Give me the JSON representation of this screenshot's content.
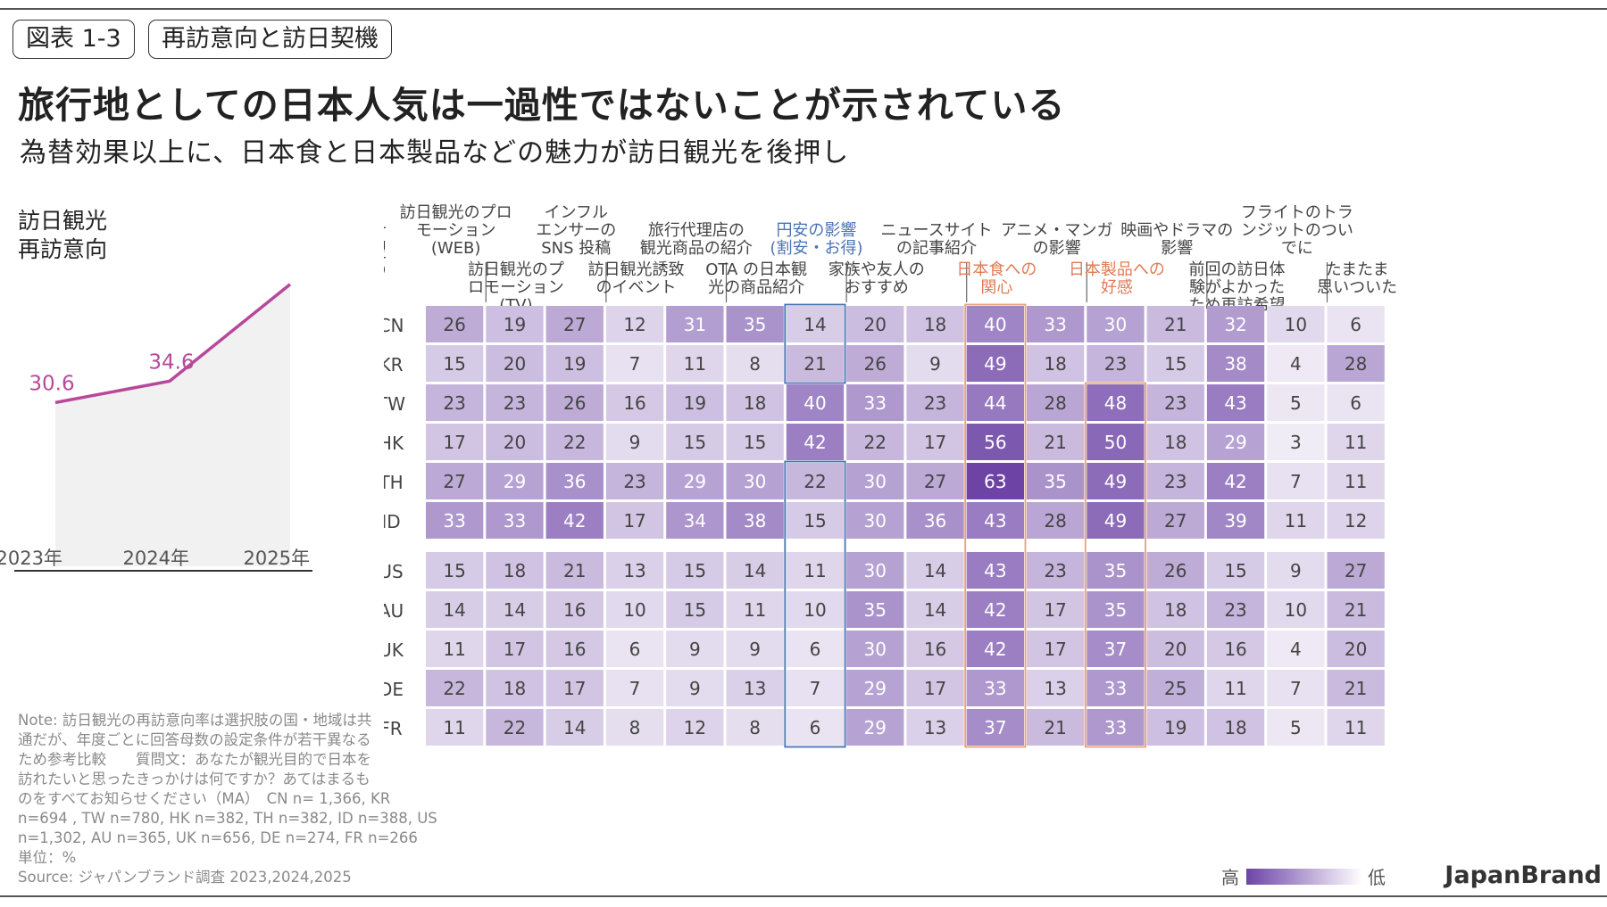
{
  "header": {
    "figure_tag": "図表 1-3",
    "section_tag": "再訪意向と訪日契機",
    "title": "旅行地としての日本人気は一過性ではないことが示されている",
    "subtitle": "為替効果以上に、日本食と日本製品などの魅力が訪日観光を後押し"
  },
  "left_panel": {
    "title_line1": "訪日観光",
    "title_line2": "再訪意向"
  },
  "heatmap_label": [
    "訪日希望の",
    "きっかけ"
  ],
  "note": {
    "lines": [
      "Note: 訪日観光の再訪意向率は選択肢の国・地域は共",
      "通だが、年度ごとに回答母数の設定条件が若干異なる",
      "ため参考比較　　質問文：あなたが観光目的で日本を",
      "訪れたいと思ったきっかけは何ですか？あてはまるも",
      "のをすべてお知らせください（MA）　CN n= 1,366, KR",
      "n=694 , TW n=780, HK n=382, TH n=382, ID n=388,  US",
      "n=1,302, AU n=365, UK n=656, DE n=274, FR n=266",
      "単位：%",
      "Source: ジャパンブランド調査 2023,2024,2025"
    ]
  },
  "brand": "JapanBrand",
  "legend": {
    "high": "高",
    "low": "低",
    "color_high": "#6d44a6",
    "color_low": "#ffffff"
  },
  "chart_data": [
    {
      "type": "line",
      "title": "訪日観光 再訪意向",
      "x": [
        "2023年",
        "2024年",
        "2025年"
      ],
      "values": [
        30.6,
        34.6,
        52.7
      ],
      "ylim": [
        0,
        62
      ],
      "line_color": "#b8499a",
      "area_color": "#f1f1f1"
    },
    {
      "type": "heatmap",
      "title": "訪日希望のきっかけ",
      "columns": [
        "訪日観光のプロモーション(WEB)",
        "訪日観光のプロモーション(TV)",
        "インフルエンサーのSNS投稿",
        "訪日観光誘致のイベント",
        "旅行代理店の観光商品の紹介",
        "OTAの日本観光の商品紹介",
        "円安の影響(割安・お得)",
        "家族や友人のおすすめ",
        "ニュースサイトの記事紹介",
        "日本食への関心",
        "アニメ・マンガの影響",
        "日本製品への好感",
        "映画やドラマの影響",
        "前回の訪日体験がよかったため再訪希望",
        "フライトのトランジットのついでに",
        "たまたま思いついた"
      ],
      "column_headers": [
        {
          "lines": [
            "訪日観光のプロ",
            "モーション",
            "(WEB)"
          ],
          "row": "upper",
          "color": "#444444"
        },
        {
          "lines": [
            "訪日観光のプ",
            "ロモーション",
            "(TV)"
          ],
          "row": "lower",
          "color": "#444444"
        },
        {
          "lines": [
            "インフル",
            "エンサーの",
            "SNS 投稿"
          ],
          "row": "upper",
          "color": "#444444"
        },
        {
          "lines": [
            "訪日観光誘致",
            "のイベント"
          ],
          "row": "lower",
          "color": "#444444"
        },
        {
          "lines": [
            "旅行代理店の",
            "観光商品の紹介"
          ],
          "row": "upper",
          "color": "#444444"
        },
        {
          "lines": [
            "OTA の日本観",
            "光の商品紹介"
          ],
          "row": "lower",
          "color": "#444444"
        },
        {
          "lines": [
            "円安の影響",
            "(割安・お得)"
          ],
          "row": "upper",
          "color": "#4a73b5"
        },
        {
          "lines": [
            "家族や友人の",
            "おすすめ"
          ],
          "row": "lower",
          "color": "#444444"
        },
        {
          "lines": [
            "ニュースサイト",
            "の記事紹介"
          ],
          "row": "upper",
          "color": "#444444"
        },
        {
          "lines": [
            "日本食への",
            "関心"
          ],
          "row": "lower",
          "color": "#e07a55"
        },
        {
          "lines": [
            "アニメ・マンガ",
            "の影響"
          ],
          "row": "upper",
          "color": "#444444"
        },
        {
          "lines": [
            "日本製品への",
            "好感"
          ],
          "row": "lower",
          "color": "#e07a55"
        },
        {
          "lines": [
            "映画やドラマの",
            "影響"
          ],
          "row": "upper",
          "color": "#444444"
        },
        {
          "lines": [
            "前回の訪日体",
            "験がよかった",
            "ため再訪希望"
          ],
          "row": "lower",
          "color": "#444444"
        },
        {
          "lines": [
            "フライトのトラ",
            "ンジットのつい",
            "でに"
          ],
          "row": "upper",
          "color": "#444444"
        },
        {
          "lines": [
            "たまたま",
            "思いついた"
          ],
          "row": "lower",
          "color": "#444444"
        }
      ],
      "rows": [
        "CN",
        "KR",
        "TW",
        "HK",
        "TH",
        "ID",
        "US",
        "AU",
        "UK",
        "DE",
        "FR"
      ],
      "values": [
        [
          26,
          19,
          27,
          12,
          31,
          35,
          14,
          20,
          18,
          40,
          33,
          30,
          21,
          32,
          10,
          6
        ],
        [
          15,
          20,
          19,
          7,
          11,
          8,
          21,
          26,
          9,
          49,
          18,
          23,
          15,
          38,
          4,
          28
        ],
        [
          23,
          23,
          26,
          16,
          19,
          18,
          40,
          33,
          23,
          44,
          28,
          48,
          23,
          43,
          5,
          6
        ],
        [
          17,
          20,
          22,
          9,
          15,
          15,
          42,
          22,
          17,
          56,
          21,
          50,
          18,
          29,
          3,
          11
        ],
        [
          27,
          29,
          36,
          23,
          29,
          30,
          22,
          30,
          27,
          63,
          35,
          49,
          23,
          42,
          7,
          11
        ],
        [
          33,
          33,
          42,
          17,
          34,
          38,
          15,
          30,
          36,
          43,
          28,
          49,
          27,
          39,
          11,
          12
        ],
        [
          15,
          18,
          21,
          13,
          15,
          14,
          11,
          30,
          14,
          43,
          23,
          35,
          26,
          15,
          9,
          27
        ],
        [
          14,
          14,
          16,
          10,
          15,
          11,
          10,
          35,
          14,
          42,
          17,
          35,
          18,
          23,
          10,
          21
        ],
        [
          11,
          17,
          16,
          6,
          9,
          9,
          6,
          30,
          16,
          42,
          17,
          37,
          20,
          16,
          4,
          20
        ],
        [
          22,
          18,
          17,
          7,
          9,
          13,
          7,
          29,
          17,
          33,
          13,
          33,
          25,
          11,
          7,
          21
        ],
        [
          11,
          22,
          14,
          8,
          12,
          8,
          6,
          29,
          13,
          37,
          21,
          33,
          19,
          18,
          5,
          11
        ]
      ],
      "group_split_after_row": "ID",
      "highlight_boxes": [
        {
          "column": "円安の影響(割安・お得)",
          "rows": [
            "CN",
            "KR"
          ],
          "color": "#4a73b5"
        },
        {
          "column": "円安の影響(割安・お得)",
          "rows": [
            "TH",
            "ID",
            "US",
            "AU",
            "UK",
            "DE",
            "FR"
          ],
          "color": "#4a73b5"
        },
        {
          "column": "日本食への関心",
          "rows": [
            "CN",
            "KR",
            "TW",
            "HK",
            "TH",
            "ID",
            "US",
            "AU",
            "UK",
            "DE",
            "FR"
          ],
          "color": "#e8a07a"
        },
        {
          "column": "日本製品への好感",
          "rows": [
            "TW",
            "HK",
            "TH",
            "ID",
            "US",
            "AU",
            "UK",
            "DE",
            "FR"
          ],
          "color": "#e8a07a"
        }
      ],
      "color_scale": {
        "min": 3,
        "max": 63,
        "low": "#ffffff",
        "high": "#6d44a6"
      }
    }
  ]
}
